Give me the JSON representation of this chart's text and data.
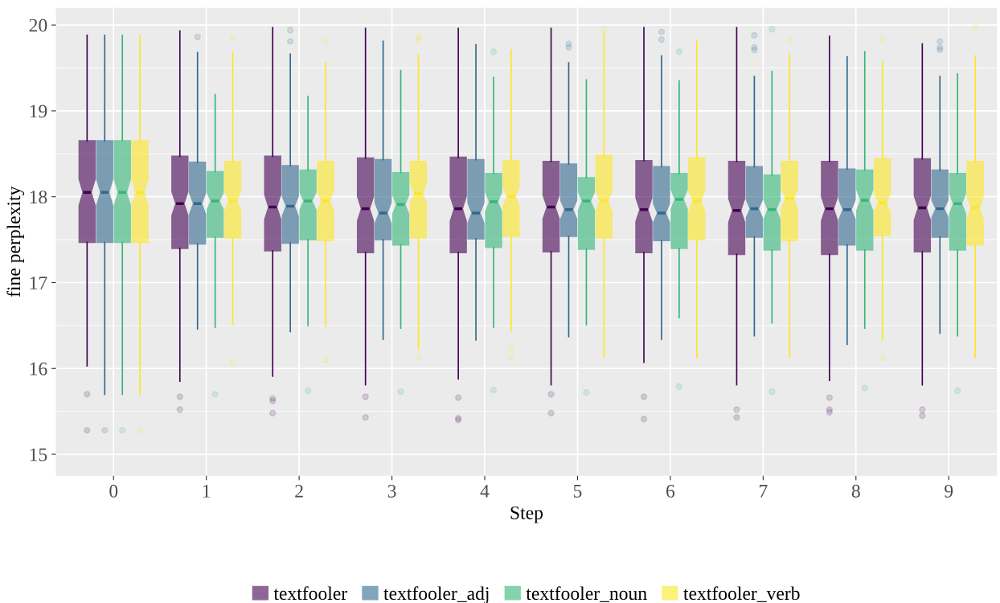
{
  "chart_data": {
    "type": "box",
    "xlabel": "Step",
    "ylabel": "fine perplexity",
    "categories": [
      "0",
      "1",
      "2",
      "3",
      "4",
      "5",
      "6",
      "7",
      "8",
      "9"
    ],
    "ylim": [
      14.75,
      20.2
    ],
    "yticks": [
      15,
      16,
      17,
      18,
      19,
      20
    ],
    "grid": true,
    "legend": "bottom",
    "series": [
      {
        "name": "textfooler",
        "color": "#440154",
        "boxes": [
          {
            "low": 16.03,
            "q1": 17.47,
            "median": 18.05,
            "q3": 18.65,
            "high": 19.88,
            "outliers": [
              15.7,
              15.28
            ]
          },
          {
            "low": 15.85,
            "q1": 17.4,
            "median": 17.92,
            "q3": 18.47,
            "high": 19.93,
            "outliers": [
              15.67,
              15.52
            ]
          },
          {
            "low": 15.91,
            "q1": 17.37,
            "median": 17.88,
            "q3": 18.47,
            "high": 19.97,
            "outliers": [
              15.65,
              15.62,
              15.48
            ]
          },
          {
            "low": 15.81,
            "q1": 17.35,
            "median": 17.86,
            "q3": 18.45,
            "high": 19.96,
            "outliers": [
              15.67,
              15.43
            ]
          },
          {
            "low": 15.88,
            "q1": 17.35,
            "median": 17.86,
            "q3": 18.46,
            "high": 19.96,
            "outliers": [
              15.66,
              15.42,
              15.4
            ]
          },
          {
            "low": 15.81,
            "q1": 17.36,
            "median": 17.88,
            "q3": 18.41,
            "high": 19.96,
            "outliers": [
              15.7,
              15.48
            ]
          },
          {
            "low": 16.07,
            "q1": 17.35,
            "median": 17.85,
            "q3": 18.42,
            "high": 19.97,
            "outliers": [
              15.67,
              15.41
            ]
          },
          {
            "low": 15.81,
            "q1": 17.33,
            "median": 17.84,
            "q3": 18.41,
            "high": 19.97,
            "outliers": [
              15.52,
              15.43
            ]
          },
          {
            "low": 15.86,
            "q1": 17.33,
            "median": 17.86,
            "q3": 18.41,
            "high": 19.87,
            "outliers": [
              15.66,
              15.52,
              15.49
            ]
          },
          {
            "low": 15.81,
            "q1": 17.36,
            "median": 17.87,
            "q3": 18.44,
            "high": 19.78,
            "outliers": [
              15.52,
              15.45
            ]
          }
        ]
      },
      {
        "name": "textfooler_adj",
        "color": "#31688e",
        "boxes": [
          {
            "low": 15.7,
            "q1": 17.47,
            "median": 18.05,
            "q3": 18.65,
            "high": 19.88,
            "outliers": [
              15.28
            ]
          },
          {
            "low": 16.46,
            "q1": 17.45,
            "median": 17.92,
            "q3": 18.4,
            "high": 19.68,
            "outliers": [
              19.86
            ]
          },
          {
            "low": 16.43,
            "q1": 17.46,
            "median": 17.89,
            "q3": 18.36,
            "high": 19.66,
            "outliers": [
              19.94,
              19.81
            ]
          },
          {
            "low": 16.34,
            "q1": 17.5,
            "median": 17.81,
            "q3": 18.43,
            "high": 19.81
          },
          {
            "low": 16.33,
            "q1": 17.51,
            "median": 17.81,
            "q3": 18.43,
            "high": 19.77
          },
          {
            "low": 16.37,
            "q1": 17.54,
            "median": 17.85,
            "q3": 18.38,
            "high": 19.56,
            "outliers": [
              19.78,
              19.74
            ]
          },
          {
            "low": 16.34,
            "q1": 17.49,
            "median": 17.81,
            "q3": 18.35,
            "high": 19.64,
            "outliers": [
              19.92,
              19.83
            ]
          },
          {
            "low": 16.38,
            "q1": 17.53,
            "median": 17.86,
            "q3": 18.35,
            "high": 19.4,
            "outliers": [
              19.88,
              19.74,
              19.71
            ]
          },
          {
            "low": 16.28,
            "q1": 17.44,
            "median": 17.85,
            "q3": 18.32,
            "high": 19.63
          },
          {
            "low": 16.41,
            "q1": 17.53,
            "median": 17.86,
            "q3": 18.31,
            "high": 19.4,
            "outliers": [
              19.81,
              19.74,
              19.71
            ]
          }
        ]
      },
      {
        "name": "textfooler_noun",
        "color": "#35b779",
        "boxes": [
          {
            "low": 15.7,
            "q1": 17.47,
            "median": 18.05,
            "q3": 18.65,
            "high": 19.88,
            "outliers": [
              15.28
            ]
          },
          {
            "low": 16.48,
            "q1": 17.53,
            "median": 17.95,
            "q3": 18.29,
            "high": 19.19,
            "outliers": [
              15.7
            ]
          },
          {
            "low": 16.5,
            "q1": 17.5,
            "median": 17.95,
            "q3": 18.31,
            "high": 19.17,
            "outliers": [
              15.74
            ]
          },
          {
            "low": 16.47,
            "q1": 17.44,
            "median": 17.91,
            "q3": 18.28,
            "high": 19.47,
            "outliers": [
              15.73
            ]
          },
          {
            "low": 16.48,
            "q1": 17.41,
            "median": 17.94,
            "q3": 18.27,
            "high": 19.39,
            "outliers": [
              19.69,
              15.75
            ]
          },
          {
            "low": 16.51,
            "q1": 17.39,
            "median": 17.95,
            "q3": 18.22,
            "high": 19.36,
            "outliers": [
              15.72
            ]
          },
          {
            "low": 16.59,
            "q1": 17.4,
            "median": 17.97,
            "q3": 18.27,
            "high": 19.35,
            "outliers": [
              19.69,
              15.79
            ]
          },
          {
            "low": 16.53,
            "q1": 17.38,
            "median": 17.85,
            "q3": 18.25,
            "high": 19.46,
            "outliers": [
              19.95,
              15.73
            ]
          },
          {
            "low": 16.47,
            "q1": 17.38,
            "median": 17.96,
            "q3": 18.31,
            "high": 19.69,
            "outliers": [
              15.77
            ]
          },
          {
            "low": 16.38,
            "q1": 17.38,
            "median": 17.92,
            "q3": 18.27,
            "high": 19.43,
            "outliers": [
              15.74
            ]
          }
        ]
      },
      {
        "name": "textfooler_verb",
        "color": "#fde725",
        "boxes": [
          {
            "low": 15.7,
            "q1": 17.47,
            "median": 18.05,
            "q3": 18.65,
            "high": 19.88,
            "outliers": [
              15.28
            ]
          },
          {
            "low": 16.51,
            "q1": 17.52,
            "median": 17.95,
            "q3": 18.41,
            "high": 19.68,
            "outliers": [
              19.85,
              16.07
            ]
          },
          {
            "low": 16.49,
            "q1": 17.49,
            "median": 17.95,
            "q3": 18.41,
            "high": 19.56,
            "outliers": [
              19.81,
              16.1
            ]
          },
          {
            "low": 16.22,
            "q1": 17.52,
            "median": 18.04,
            "q3": 18.41,
            "high": 19.65,
            "outliers": [
              19.86,
              19.83,
              16.13
            ]
          },
          {
            "low": 16.44,
            "q1": 17.54,
            "median": 18.0,
            "q3": 18.42,
            "high": 19.71,
            "outliers": [
              16.24,
              16.13
            ]
          },
          {
            "low": 16.13,
            "q1": 17.52,
            "median": 17.95,
            "q3": 18.48,
            "high": 19.9,
            "outliers": [
              19.95
            ]
          },
          {
            "low": 16.13,
            "q1": 17.5,
            "median": 17.95,
            "q3": 18.45,
            "high": 19.81
          },
          {
            "low": 16.13,
            "q1": 17.49,
            "median": 17.98,
            "q3": 18.41,
            "high": 19.66,
            "outliers": [
              19.82
            ]
          },
          {
            "low": 16.33,
            "q1": 17.55,
            "median": 17.93,
            "q3": 18.44,
            "high": 19.58,
            "outliers": [
              19.84,
              16.13
            ]
          },
          {
            "low": 16.13,
            "q1": 17.44,
            "median": 17.87,
            "q3": 18.41,
            "high": 19.64,
            "outliers": [
              19.98
            ]
          }
        ]
      }
    ]
  }
}
